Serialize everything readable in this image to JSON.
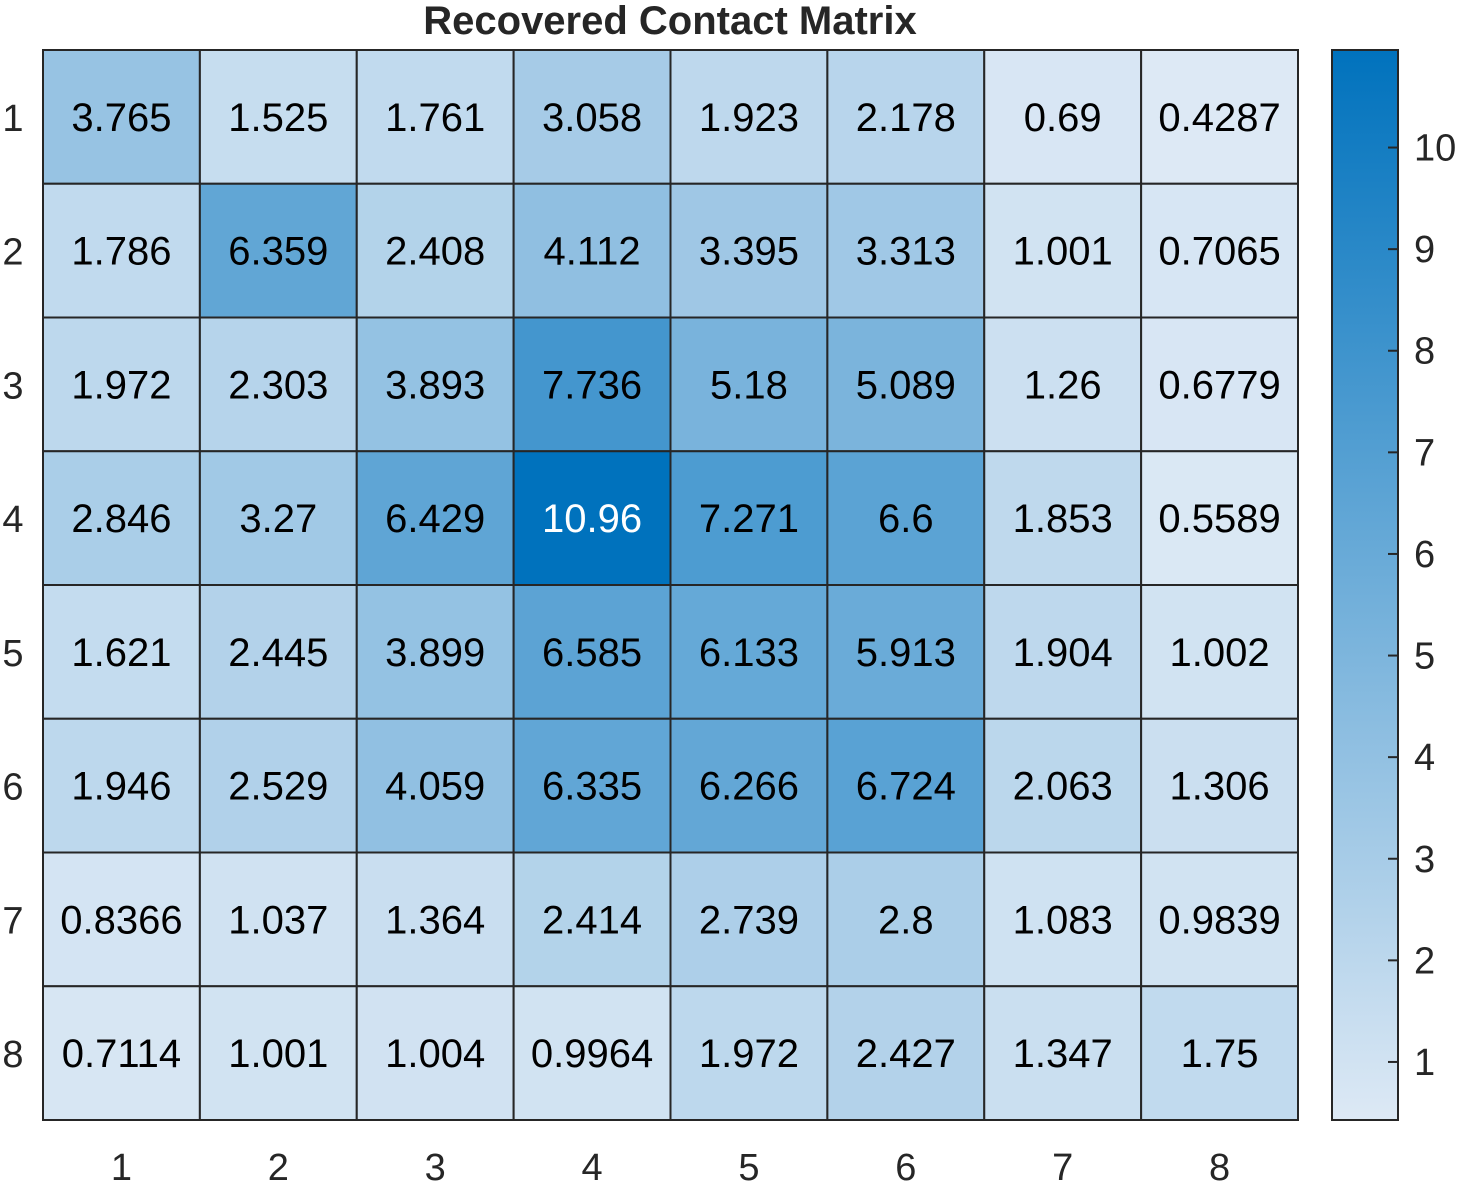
{
  "chart_data": {
    "type": "heatmap",
    "title": "Recovered Contact Matrix",
    "xlabel": "",
    "ylabel": "",
    "x_categories": [
      "1",
      "2",
      "3",
      "4",
      "5",
      "6",
      "7",
      "8"
    ],
    "y_categories": [
      "1",
      "2",
      "3",
      "4",
      "5",
      "6",
      "7",
      "8"
    ],
    "cell_labels": [
      [
        "3.765",
        "1.525",
        "1.761",
        "3.058",
        "1.923",
        "2.178",
        "0.69",
        "0.4287"
      ],
      [
        "1.786",
        "6.359",
        "2.408",
        "4.112",
        "3.395",
        "3.313",
        "1.001",
        "0.7065"
      ],
      [
        "1.972",
        "2.303",
        "3.893",
        "7.736",
        "5.18",
        "5.089",
        "1.26",
        "0.6779"
      ],
      [
        "2.846",
        "3.27",
        "6.429",
        "10.96",
        "7.271",
        "6.6",
        "1.853",
        "0.5589"
      ],
      [
        "1.621",
        "2.445",
        "3.899",
        "6.585",
        "6.133",
        "5.913",
        "1.904",
        "1.002"
      ],
      [
        "1.946",
        "2.529",
        "4.059",
        "6.335",
        "6.266",
        "6.724",
        "2.063",
        "1.306"
      ],
      [
        "0.8366",
        "1.037",
        "1.364",
        "2.414",
        "2.739",
        "2.8",
        "1.083",
        "0.9839"
      ],
      [
        "0.7114",
        "1.001",
        "1.004",
        "0.9964",
        "1.972",
        "2.427",
        "1.347",
        "1.75"
      ]
    ],
    "colorbar": {
      "ticks": [
        "1",
        "2",
        "3",
        "4",
        "5",
        "6",
        "7",
        "8",
        "9",
        "10"
      ],
      "range": [
        0.4287,
        10.96
      ]
    },
    "colors": {
      "low": "#dde9f5",
      "high": "#0072bd",
      "grid": "#262626",
      "text_dark": "#000000",
      "text_light": "#ffffff"
    }
  }
}
